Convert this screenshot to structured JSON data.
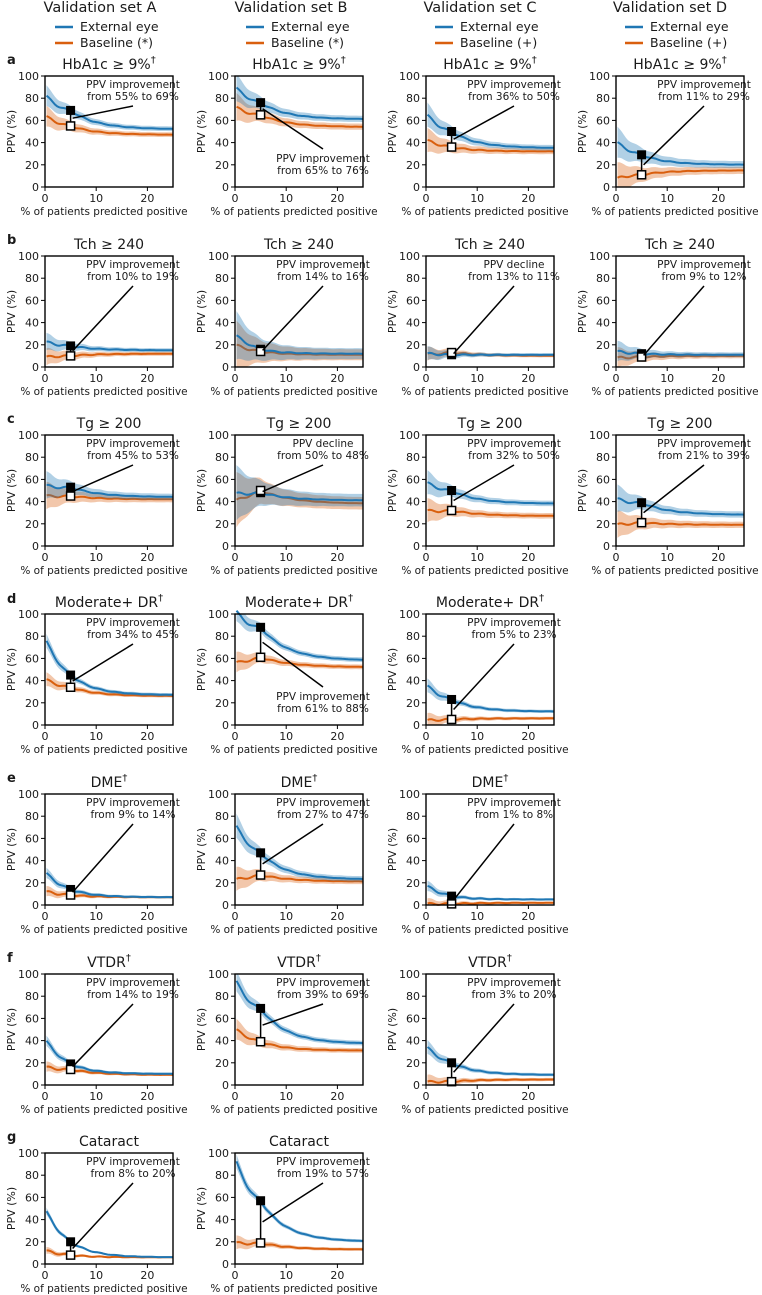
{
  "column_titles": [
    "Validation set A",
    "Validation set B",
    "Validation set C",
    "Validation set D"
  ],
  "legend": {
    "model_label": "External eye",
    "baselines": [
      "Baseline (*)",
      "Baseline (*)",
      "Baseline (+)",
      "Baseline (+)"
    ],
    "colors": {
      "model": "#1f77b4",
      "baseline": "#d95f0e"
    }
  },
  "axis": {
    "xlabel": "% of patients predicted positive",
    "ylabel": "PPV (%)",
    "xticks": [
      0,
      10,
      20
    ],
    "yticks": [
      0,
      20,
      40,
      60,
      80,
      100
    ],
    "xlim": [
      0,
      25
    ],
    "ylim": [
      0,
      100
    ]
  },
  "rows": [
    {
      "letter": "a",
      "title": "HbA1c ≥ 9%",
      "sup": "†",
      "charts": [
        {
          "model": 69,
          "base": 55,
          "start_m": 80,
          "end_m": 52,
          "start_b": 63,
          "end_b": 47,
          "ann": [
            "PPV improvement",
            "from 55% to 69%"
          ],
          "pos": "top",
          "band": 6
        },
        {
          "model": 76,
          "base": 65,
          "start_m": 88,
          "end_m": 61,
          "start_b": 70,
          "end_b": 54,
          "ann": [
            "PPV improvement",
            "from 65% to 76%"
          ],
          "pos": "bottom",
          "band": 8
        },
        {
          "model": 50,
          "base": 36,
          "start_m": 64,
          "end_m": 35,
          "start_b": 42,
          "end_b": 32,
          "ann": [
            "PPV improvement",
            "from 36% to 50%"
          ],
          "pos": "top",
          "band": 7
        },
        {
          "model": 29,
          "base": 11,
          "start_m": 40,
          "end_m": 20,
          "start_b": 8,
          "end_b": 15,
          "ann": [
            "PPV improvement",
            "from 11% to 29%"
          ],
          "pos": "top",
          "band": 9
        }
      ]
    },
    {
      "letter": "b",
      "title": "Tch ≥ 240",
      "sup": "",
      "charts": [
        {
          "model": 19,
          "base": 10,
          "start_m": 22,
          "end_m": 15,
          "start_b": 9,
          "end_b": 12,
          "ann": [
            "PPV improvement",
            "from 10% to 19%"
          ],
          "pos": "top",
          "band": 5
        },
        {
          "model": 16,
          "base": 14,
          "start_m": 30,
          "end_m": 12,
          "start_b": 20,
          "end_b": 11,
          "ann": [
            "PPV improvement",
            "from 14% to 16%"
          ],
          "pos": "top",
          "band": 14
        },
        {
          "model": 11,
          "base": 13,
          "start_m": 12,
          "end_m": 11,
          "start_b": 10,
          "end_b": 10,
          "ann": [
            "PPV decline",
            "from 13% to 11%"
          ],
          "pos": "top",
          "band": 4
        },
        {
          "model": 12,
          "base": 9,
          "start_m": 14,
          "end_m": 11,
          "start_b": 8,
          "end_b": 10,
          "ann": [
            "PPV improvement",
            "from 9% to 12%"
          ],
          "pos": "top",
          "band": 6
        }
      ]
    },
    {
      "letter": "c",
      "title": "Tg ≥ 200",
      "sup": "",
      "charts": [
        {
          "model": 53,
          "base": 45,
          "start_m": 52,
          "end_m": 44,
          "start_b": 44,
          "end_b": 42,
          "ann": [
            "PPV improvement",
            "from 45% to 53%"
          ],
          "pos": "top",
          "band": 8
        },
        {
          "model": 48,
          "base": 50,
          "start_m": 45,
          "end_m": 41,
          "start_b": 35,
          "end_b": 38,
          "ann": [
            "PPV decline",
            "from 50% to 48%"
          ],
          "pos": "top",
          "band": 16
        },
        {
          "model": 50,
          "base": 32,
          "start_m": 55,
          "end_m": 38,
          "start_b": 30,
          "end_b": 27,
          "ann": [
            "PPV improvement",
            "from 32% to 50%"
          ],
          "pos": "top",
          "band": 7
        },
        {
          "model": 39,
          "base": 21,
          "start_m": 40,
          "end_m": 28,
          "start_b": 18,
          "end_b": 19,
          "ann": [
            "PPV improvement",
            "from 21% to 39%"
          ],
          "pos": "top",
          "band": 8
        }
      ]
    },
    {
      "letter": "d",
      "title": "Moderate+ DR",
      "sup": "†",
      "charts": [
        {
          "model": 45,
          "base": 34,
          "start_m": 78,
          "end_m": 27,
          "start_b": 40,
          "end_b": 26,
          "ann": [
            "PPV improvement",
            "from 34% to 45%"
          ],
          "pos": "top",
          "band": 4
        },
        {
          "model": 88,
          "base": 61,
          "start_m": 97,
          "end_m": 58,
          "start_b": 52,
          "end_b": 52,
          "ann": [
            "PPV improvement",
            "from 61% to 88%"
          ],
          "pos": "bottom",
          "band": 6
        },
        {
          "model": 23,
          "base": 5,
          "start_m": 35,
          "end_m": 12,
          "start_b": 4,
          "end_b": 6,
          "ann": [
            "PPV improvement",
            "from 5% to 23%"
          ],
          "pos": "top",
          "band": 4
        }
      ]
    },
    {
      "letter": "e",
      "title": "DME",
      "sup": "†",
      "charts": [
        {
          "model": 14,
          "base": 9,
          "start_m": 30,
          "end_m": 7,
          "start_b": 12,
          "end_b": 7,
          "ann": [
            "PPV improvement",
            "from 9% to 14%"
          ],
          "pos": "top",
          "band": 3
        },
        {
          "model": 47,
          "base": 27,
          "start_m": 70,
          "end_m": 23,
          "start_b": 20,
          "end_b": 21,
          "ann": [
            "PPV improvement",
            "from 27% to 47%"
          ],
          "pos": "top",
          "band": 7
        },
        {
          "model": 8,
          "base": 1,
          "start_m": 18,
          "end_m": 5,
          "start_b": 1,
          "end_b": 2,
          "ann": [
            "PPV improvement",
            "from 1% to 8%"
          ],
          "pos": "top",
          "band": 3
        }
      ]
    },
    {
      "letter": "f",
      "title": "VTDR",
      "sup": "†",
      "charts": [
        {
          "model": 19,
          "base": 14,
          "start_m": 42,
          "end_m": 10,
          "start_b": 15,
          "end_b": 9,
          "ann": [
            "PPV improvement",
            "from 14% to 19%"
          ],
          "pos": "top",
          "band": 3
        },
        {
          "model": 69,
          "base": 39,
          "start_m": 90,
          "end_m": 37,
          "start_b": 50,
          "end_b": 31,
          "ann": [
            "PPV improvement",
            "from 39% to 69%"
          ],
          "pos": "top",
          "band": 6
        },
        {
          "model": 20,
          "base": 3,
          "start_m": 34,
          "end_m": 9,
          "start_b": 3,
          "end_b": 5,
          "ann": [
            "PPV improvement",
            "from 3% to 20%"
          ],
          "pos": "top",
          "band": 4
        }
      ]
    },
    {
      "letter": "g",
      "title": "Cataract",
      "sup": "",
      "charts": [
        {
          "model": 20,
          "base": 8,
          "start_m": 50,
          "end_m": 6,
          "start_b": 12,
          "end_b": 6,
          "ann": [
            "PPV improvement",
            "from 8% to 20%"
          ],
          "pos": "top",
          "band": 2
        },
        {
          "model": 57,
          "base": 19,
          "start_m": 90,
          "end_m": 20,
          "start_b": 17,
          "end_b": 13,
          "ann": [
            "PPV improvement",
            "from 19% to 57%"
          ],
          "pos": "top",
          "band": 4
        }
      ]
    }
  ],
  "chart_data": {
    "type": "line",
    "x_marker": 5,
    "xlabel": "% of patients predicted positive",
    "ylabel": "PPV (%)",
    "xlim": [
      0,
      25
    ],
    "ylim": [
      0,
      100
    ],
    "series_names": [
      "External eye",
      "Baseline"
    ]
  }
}
